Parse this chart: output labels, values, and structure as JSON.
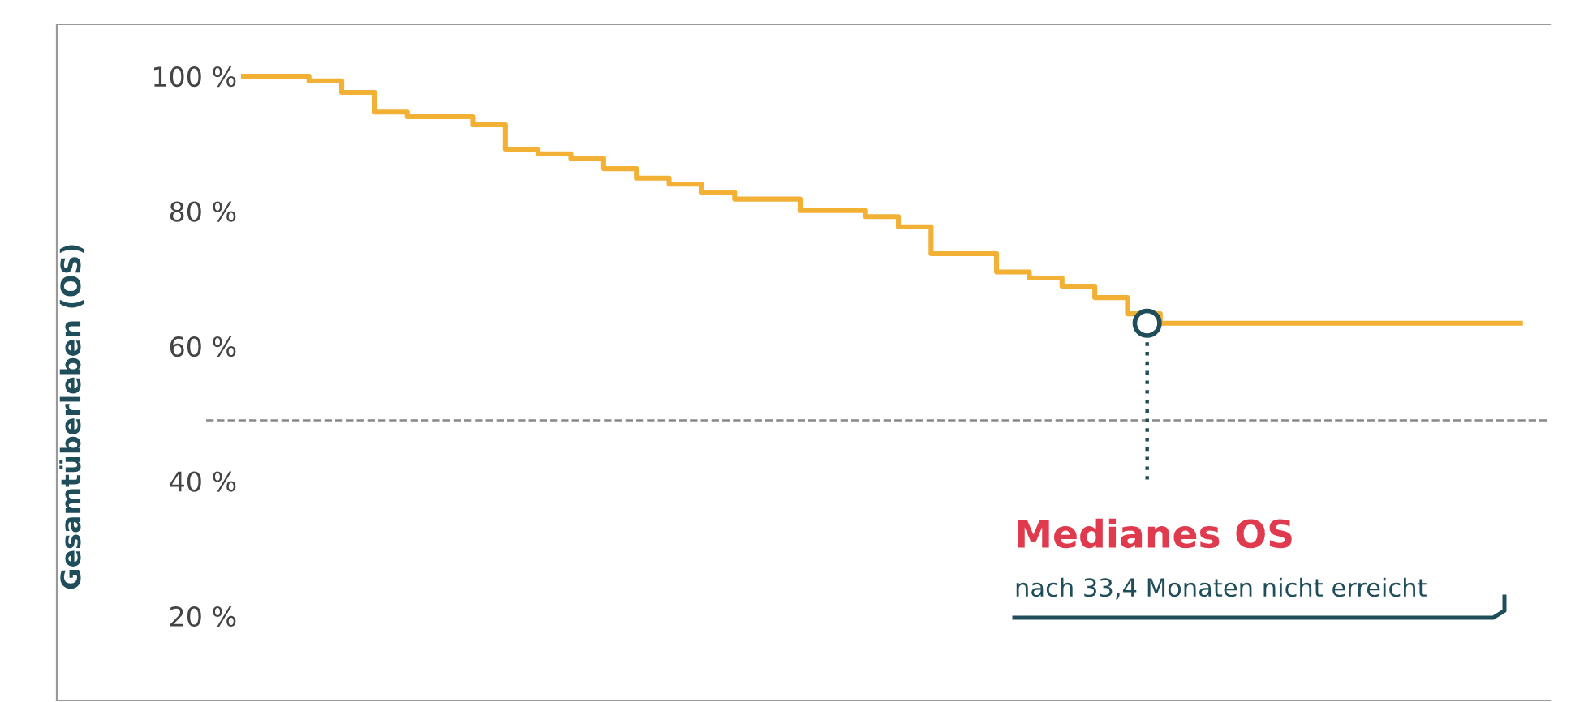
{
  "chart_data": {
    "type": "step",
    "ylabel": "Gesamtüberleben (OS)",
    "categories": [
      null,
      null,
      null,
      null,
      null,
      null,
      null,
      null,
      null,
      null,
      null,
      null,
      null,
      null,
      null,
      null,
      null,
      null,
      null,
      null,
      null,
      null,
      null,
      null,
      null,
      null,
      null,
      null,
      null,
      null,
      null,
      null,
      null,
      null,
      null,
      null,
      null,
      null,
      null,
      null
    ],
    "series": [
      {
        "color": "#f2b035",
        "values": [
          100,
          100,
          99.3,
          97.6,
          94.7,
          94.0,
          94.0,
          92.8,
          89.2,
          88.5,
          87.8,
          86.3,
          84.9,
          84.0,
          82.8,
          81.8,
          81.8,
          80.1,
          80.1,
          79.2,
          77.7,
          73.7,
          73.7,
          71.0,
          70.1,
          68.9,
          67.2,
          64.8,
          63.4,
          63.4,
          63.4,
          63.4,
          63.4,
          63.4,
          63.4,
          63.4,
          63.4,
          63.4,
          63.4,
          63.4
        ]
      }
    ],
    "ylim": [
      7.5,
      107.7
    ],
    "yticks": [
      {
        "value": 20,
        "label": "20 %"
      },
      {
        "value": 40,
        "label": "40 %"
      },
      {
        "value": 60,
        "label": "60 %"
      },
      {
        "value": 80,
        "label": "80 %"
      },
      {
        "value": 100,
        "label": "100 %"
      }
    ],
    "ref_lines": [
      {
        "axis": "y",
        "value": 49,
        "label": null,
        "color": "#888888",
        "line_style": "dashed"
      }
    ],
    "annotations": [
      "Medianes OS",
      "nach 33,4 Monaten nicht erreicht"
    ],
    "tick_labels": "y",
    "grid": false,
    "legend": false,
    "line_style": "solid",
    "marker": "none"
  }
}
